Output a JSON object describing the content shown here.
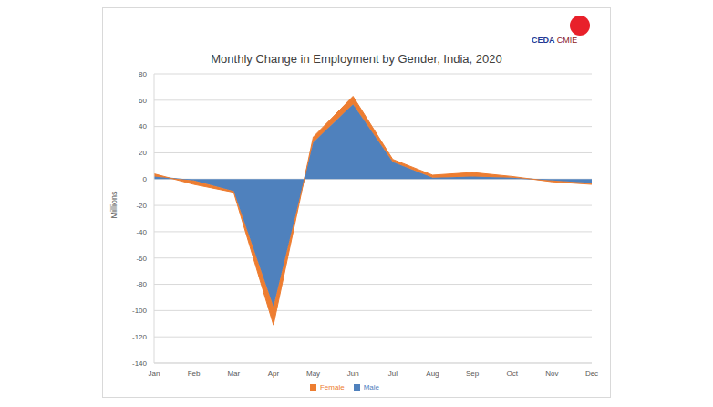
{
  "chart_data": {
    "type": "area",
    "title": "Monthly Change in Employment by Gender, India, 2020",
    "logo": [
      "CEDA",
      "CMIE"
    ],
    "y_label": "Millions",
    "categories": [
      "Jan",
      "Feb",
      "Mar",
      "Apr",
      "May",
      "Jun",
      "Jul",
      "Aug",
      "Sep",
      "Oct",
      "Nov",
      "Dec"
    ],
    "series": [
      {
        "name": "Male",
        "color": "#4f81bd",
        "values": [
          2,
          -1,
          -9,
          -97,
          28,
          57,
          13,
          1,
          2,
          1,
          -1,
          -3
        ]
      },
      {
        "name": "Female",
        "color": "#ed7d31",
        "values": [
          2,
          -3,
          -1,
          -14,
          4,
          6,
          2,
          2,
          3,
          1,
          -1,
          -1
        ]
      }
    ],
    "ylim": [
      -140,
      80
    ],
    "yticks": [
      -140,
      -120,
      -100,
      -80,
      -60,
      -40,
      -20,
      0,
      20,
      40,
      60,
      80
    ],
    "stacked": true,
    "grid": true,
    "legend": "bottom"
  }
}
